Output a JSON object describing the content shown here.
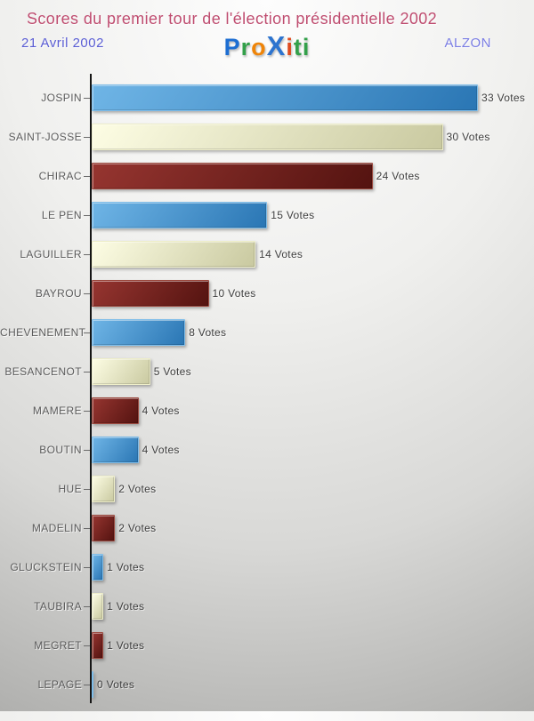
{
  "header": {
    "title": "Scores du premier tour de l'élection présidentielle 2002",
    "title_color": "#bf4d70",
    "date": "21 Avril 2002",
    "date_color": "#5a5dd4",
    "location": "ALZON",
    "location_color": "#7a7de4",
    "logo": {
      "text": "Proxiti",
      "letters": [
        {
          "ch": "P",
          "color": "#1d6ed2",
          "big": false
        },
        {
          "ch": "r",
          "color": "#33a04a",
          "big": false
        },
        {
          "ch": "o",
          "color": "#ef8408",
          "big": false
        },
        {
          "ch": "X",
          "color": "#2d74cf",
          "big": true
        },
        {
          "ch": "i",
          "color": "#e04b1e",
          "big": false
        },
        {
          "ch": "t",
          "color": "#33a04a",
          "big": false
        },
        {
          "ch": "i",
          "color": "#33a04a",
          "big": false
        }
      ]
    }
  },
  "chart_data": {
    "type": "bar",
    "orientation": "horizontal",
    "title": "Scores du premier tour de l'élection présidentielle 2002",
    "unit": "Votes",
    "categories": [
      "JOSPIN",
      "SAINT-JOSSE",
      "CHIRAC",
      "LE PEN",
      "LAGUILLER",
      "BAYROU",
      "CHEVENEMENT",
      "BESANCENOT",
      "MAMERE",
      "BOUTIN",
      "HUE",
      "MADELIN",
      "GLUCKSTEIN",
      "TAUBIRA",
      "MEGRET",
      "LEPAGE"
    ],
    "values": [
      33,
      30,
      24,
      15,
      14,
      10,
      8,
      5,
      4,
      4,
      2,
      2,
      1,
      1,
      1,
      0
    ],
    "value_labels": [
      "33 Votes",
      "30 Votes",
      "24 Votes",
      "15 Votes",
      "14 Votes",
      "10 Votes",
      "8 Votes",
      "5 Votes",
      "4 Votes",
      "4 Votes",
      "2 Votes",
      "2 Votes",
      "1 Votes",
      "1 Votes",
      "1 Votes",
      "0 Votes"
    ],
    "xlim": [
      0,
      33
    ],
    "grid": false,
    "legend": false,
    "axis_color": "#151515",
    "bar_color_cycle": [
      {
        "name": "blue",
        "from": "#6fb5e6",
        "to": "#2a76b4",
        "edge": "#7fbde9"
      },
      {
        "name": "cream",
        "from": "#fdfde4",
        "to": "#c9c9a0",
        "edge": "#eeeec9"
      },
      {
        "name": "darkred",
        "from": "#963530",
        "to": "#541310",
        "edge": "#9c4a40"
      }
    ]
  }
}
